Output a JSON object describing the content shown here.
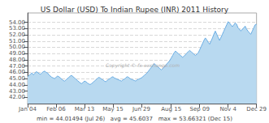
{
  "chart_data": {
    "type": "area",
    "title": "US Dollar (USD) To Indian Rupee (INR) 2011 History",
    "annotations": [
      "Copyright © fx-exchange.com",
      "min = 44.01494 (Jul 26)   avg = 45.6037   max = 53.66321 (Dec 15)"
    ],
    "color": "#6aade4",
    "fill_color": "#b8d9f0",
    "grid": true,
    "ylim": [
      41.0,
      55.5
    ],
    "yticks": [
      {
        "value": 42.0,
        "label": "42.00"
      },
      {
        "value": 43.0,
        "label": "43.00"
      },
      {
        "value": 44.0,
        "label": "44.00"
      },
      {
        "value": 45.0,
        "label": "45.00"
      },
      {
        "value": 46.0,
        "label": "46.00"
      },
      {
        "value": 47.0,
        "label": "47.00"
      },
      {
        "value": 48.0,
        "label": "48.00"
      },
      {
        "value": 49.0,
        "label": "49.00"
      },
      {
        "value": 50.0,
        "label": "50.00"
      },
      {
        "value": 51.0,
        "label": "51.00"
      },
      {
        "value": 52.0,
        "label": "52.00"
      },
      {
        "value": 53.0,
        "label": "53.00"
      },
      {
        "value": 54.0,
        "label": "54.00"
      }
    ],
    "categories": [
      "Jan 04",
      null,
      null,
      null,
      null,
      null,
      null,
      null,
      null,
      null,
      null,
      null,
      null,
      null,
      null,
      null,
      null,
      null,
      null,
      null,
      "Feb 06",
      null,
      null,
      null,
      null,
      null,
      null,
      null,
      null,
      null,
      null,
      null,
      null,
      null,
      null,
      null,
      null,
      null,
      null,
      null,
      "Mar 13",
      null,
      null,
      null,
      null,
      null,
      null,
      null,
      null,
      null,
      null,
      null,
      null,
      null,
      null,
      null,
      null,
      null,
      null,
      null,
      "May 15",
      null,
      null,
      null,
      null,
      null,
      null,
      null,
      null,
      null,
      null,
      null,
      null,
      null,
      null,
      null,
      null,
      null,
      null,
      null,
      "Jun 29",
      null,
      null,
      null,
      null,
      null,
      null,
      null,
      null,
      null,
      null,
      null,
      null,
      null,
      null,
      null,
      null,
      null,
      null,
      null,
      null,
      "Aug 15",
      null,
      null,
      null,
      null,
      null,
      null,
      null,
      null,
      null,
      null,
      null,
      null,
      null,
      null,
      null,
      null,
      null,
      null,
      null,
      "Sep 09",
      null,
      null,
      null,
      null,
      null,
      null,
      null,
      null,
      null,
      null,
      null,
      null,
      null,
      null,
      null,
      null,
      null,
      null,
      null,
      "Nov 4",
      null,
      null,
      null,
      null,
      null,
      null,
      null,
      null,
      null,
      null,
      null,
      null,
      null,
      null,
      null,
      null,
      null,
      null,
      null,
      "Dec 29"
    ],
    "values": [
      45.3,
      45.5,
      45.7,
      45.9,
      45.6,
      45.8,
      46.1,
      46.0,
      45.8,
      45.7,
      45.9,
      46.1,
      46.2,
      46.0,
      45.9,
      45.6,
      45.4,
      45.2,
      45.1,
      45.0,
      45.2,
      45.4,
      45.3,
      45.1,
      44.9,
      44.7,
      44.6,
      44.8,
      45.0,
      45.2,
      45.4,
      45.5,
      45.3,
      45.1,
      44.9,
      44.7,
      44.5,
      44.3,
      44.2,
      44.4,
      44.6,
      44.5,
      44.3,
      44.15,
      44.05,
      44.2,
      44.4,
      44.6,
      44.8,
      45.0,
      45.2,
      45.1,
      44.9,
      44.8,
      44.6,
      44.5,
      44.7,
      44.9,
      45.0,
      45.2,
      45.3,
      45.1,
      45.0,
      44.9,
      44.8,
      44.7,
      44.6,
      44.8,
      44.9,
      45.1,
      45.3,
      45.2,
      45.0,
      44.9,
      44.8,
      44.7,
      44.6,
      44.8,
      44.9,
      45.0,
      45.1,
      45.3,
      45.5,
      45.7,
      45.9,
      46.2,
      46.5,
      46.8,
      47.1,
      47.4,
      47.2,
      47.0,
      46.8,
      46.6,
      46.4,
      46.6,
      46.8,
      47.1,
      47.4,
      47.6,
      47.9,
      48.3,
      48.7,
      49.1,
      49.4,
      49.2,
      49.0,
      48.8,
      48.6,
      48.4,
      48.6,
      48.8,
      49.1,
      49.3,
      49.5,
      49.3,
      49.1,
      48.9,
      48.7,
      48.9,
      49.1,
      49.6,
      50.1,
      50.6,
      51.1,
      51.5,
      51.2,
      50.8,
      50.5,
      51.0,
      51.5,
      52.1,
      52.6,
      52.1,
      51.6,
      51.1,
      51.6,
      52.1,
      52.6,
      53.1,
      53.6,
      54.1,
      53.9,
      53.6,
      53.3,
      53.6,
      53.9,
      53.7,
      53.1,
      52.9,
      52.6,
      52.9,
      53.1,
      53.4,
      52.9,
      52.6,
      52.3,
      52.1,
      52.6,
      53.1,
      53.6,
      53.66
    ]
  }
}
